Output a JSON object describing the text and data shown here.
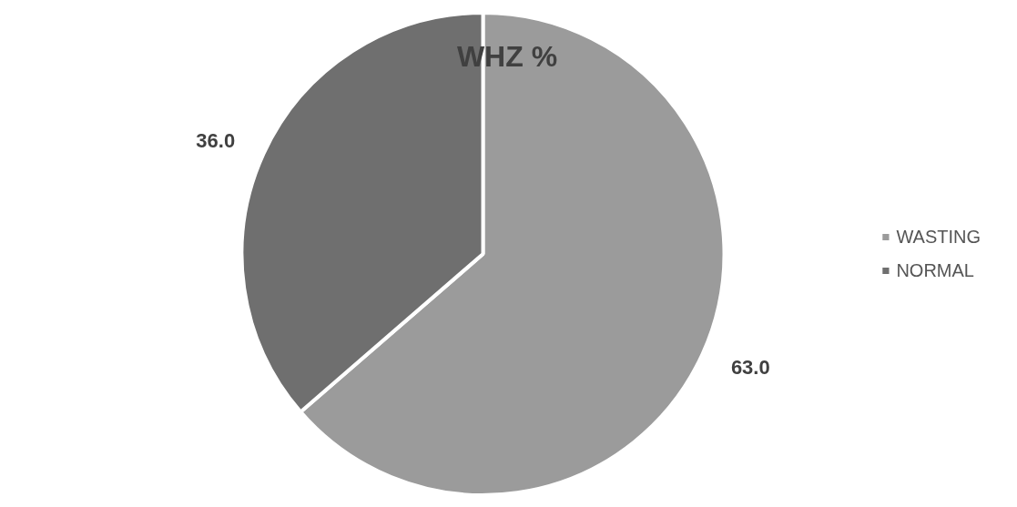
{
  "chart_data": {
    "type": "pie",
    "title": "WHZ %",
    "categories": [
      "WASTING",
      "NORMAL"
    ],
    "values": [
      63.0,
      36.0
    ],
    "colors": [
      "#9b9b9b",
      "#6f6f6f"
    ],
    "value_labels": [
      "63.0",
      "36.0"
    ],
    "legend": "right"
  }
}
